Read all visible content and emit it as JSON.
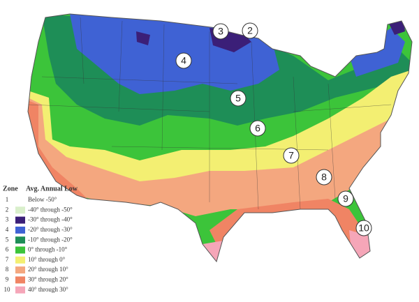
{
  "legend": {
    "zone_heading": "Zone",
    "low_heading": "Avg. Annual Low",
    "rows": [
      {
        "zone": 1,
        "range": "Below -50°"
      },
      {
        "zone": 2,
        "range": "-40° through -50°",
        "color": "#d9efcb"
      },
      {
        "zone": 3,
        "range": "-30° through -40°",
        "color": "#3b1f78"
      },
      {
        "zone": 4,
        "range": "-20° through -30°",
        "color": "#3f62d4"
      },
      {
        "zone": 5,
        "range": "-10° through -20°",
        "color": "#1e8e57"
      },
      {
        "zone": 6,
        "range": "0° through -10°",
        "color": "#3cc43a"
      },
      {
        "zone": 7,
        "range": "10° through 0°",
        "color": "#f3ef72"
      },
      {
        "zone": 8,
        "range": "20° through 10°",
        "color": "#f4a77f"
      },
      {
        "zone": 9,
        "range": "30° through 20°",
        "color": "#f08464"
      },
      {
        "zone": 10,
        "range": "40° through 30°",
        "color": "#f5a6b8"
      }
    ]
  },
  "map_labels": [
    3,
    2,
    4,
    5,
    6,
    7,
    8,
    9,
    10
  ]
}
